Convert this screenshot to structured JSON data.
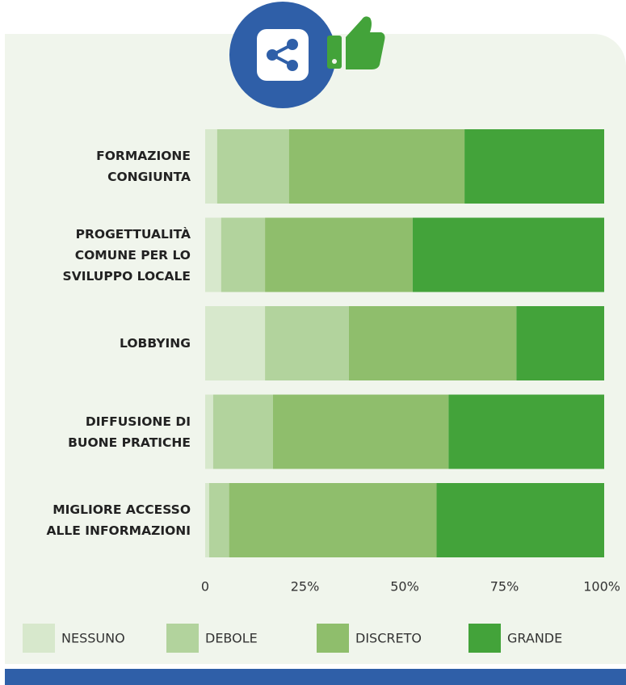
{
  "chart_data": {
    "type": "stacked_barh",
    "categories": [
      "FORMAZIONE\nCONGIUNTA",
      "PROGETTUALITÀ\nCOMUNE PER LO\nSVILUPPO LOCALE",
      "LOBBYING",
      "DIFFUSIONE DI\nBUONE PRATICHE",
      "MIGLIORE ACCESSO\nALLE INFORMAZIONI"
    ],
    "series": [
      {
        "name": "NESSUNO",
        "color": "#d7e8cc",
        "values": [
          3,
          4,
          15,
          2,
          1
        ]
      },
      {
        "name": "DEBOLE",
        "color": "#b2d39d",
        "values": [
          18,
          11,
          21,
          15,
          5
        ]
      },
      {
        "name": "DISCRETO",
        "color": "#8fbe6c",
        "values": [
          44,
          37,
          42,
          44,
          52
        ]
      },
      {
        "name": "GRANDE",
        "color": "#43a33a",
        "values": [
          35,
          48,
          22,
          39,
          42
        ]
      }
    ],
    "xlim": [
      0,
      100
    ],
    "xticks": [
      0,
      {
        "value": 25,
        "label": "25%"
      },
      {
        "value": 50,
        "label": "50%"
      },
      {
        "value": 75,
        "label": "75%"
      },
      {
        "value": 100,
        "label": "100%"
      }
    ],
    "legend": "bottom"
  }
}
